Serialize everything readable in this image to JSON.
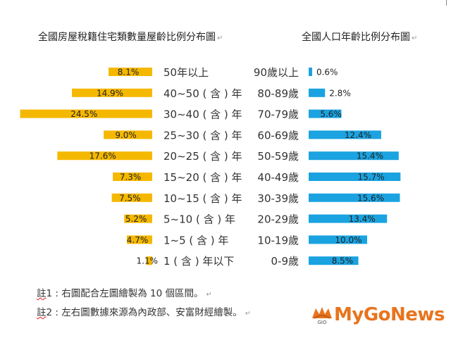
{
  "left_title": "全國房屋稅籍住宅類數量屋齡比例分布圖",
  "right_title": "全國人口年齡比例分布圖",
  "paragraph_mark": "↵",
  "notes": {
    "note1_prefix": "註",
    "note1_text": "1 : 右圖配合左圖繪製為 10 個區間。",
    "note2_prefix": "註",
    "note2_text": "2 : 左右圖數據來源為內政部、安富財經繪製。"
  },
  "logo": {
    "text": "MyGoNews",
    "mark": "GIO",
    "color": "#e8741e"
  },
  "colors": {
    "left_bar": "#f5b800",
    "right_bar": "#1aa3e0"
  },
  "chart_data": [
    {
      "type": "bar",
      "orientation": "horizontal",
      "direction": "right-to-left",
      "title": "全國房屋稅籍住宅類數量屋齡比例分布圖",
      "categories": [
        "50年以上",
        "40~50 ( 含 ) 年",
        "30~40 ( 含 ) 年",
        "25~30 ( 含 ) 年",
        "20~25 ( 含 ) 年",
        "15~20 ( 含 ) 年",
        "10~15 ( 含 ) 年",
        "5~10 ( 含 ) 年",
        "1~5 ( 含 ) 年",
        "1 ( 含 ) 年以下"
      ],
      "values": [
        8.1,
        14.9,
        24.5,
        9.0,
        17.6,
        7.3,
        7.5,
        5.2,
        4.7,
        1.1
      ],
      "labels": [
        "8.1%",
        "14.9%",
        "24.5%",
        "9.0%",
        "17.6%",
        "7.3%",
        "7.5%",
        "5.2%",
        "4.7%",
        "1.1%"
      ],
      "unit": "%",
      "color": "#f5b800"
    },
    {
      "type": "bar",
      "orientation": "horizontal",
      "direction": "left-to-right",
      "title": "全國人口年齡比例分布圖",
      "categories": [
        "90歲以上",
        "80-89歲",
        "70-79歲",
        "60-69歲",
        "50-59歲",
        "40-49歲",
        "30-39歲",
        "20-29歲",
        "10-19歲",
        "0-9歲"
      ],
      "values": [
        0.6,
        2.8,
        5.6,
        12.4,
        15.4,
        15.7,
        15.6,
        13.4,
        10.0,
        8.5
      ],
      "labels": [
        "0.6%",
        "2.8%",
        "5.6%",
        "12.4%",
        "15.4%",
        "15.7%",
        "15.6%",
        "13.4%",
        "10.0%",
        "8.5%"
      ],
      "unit": "%",
      "color": "#1aa3e0"
    }
  ]
}
